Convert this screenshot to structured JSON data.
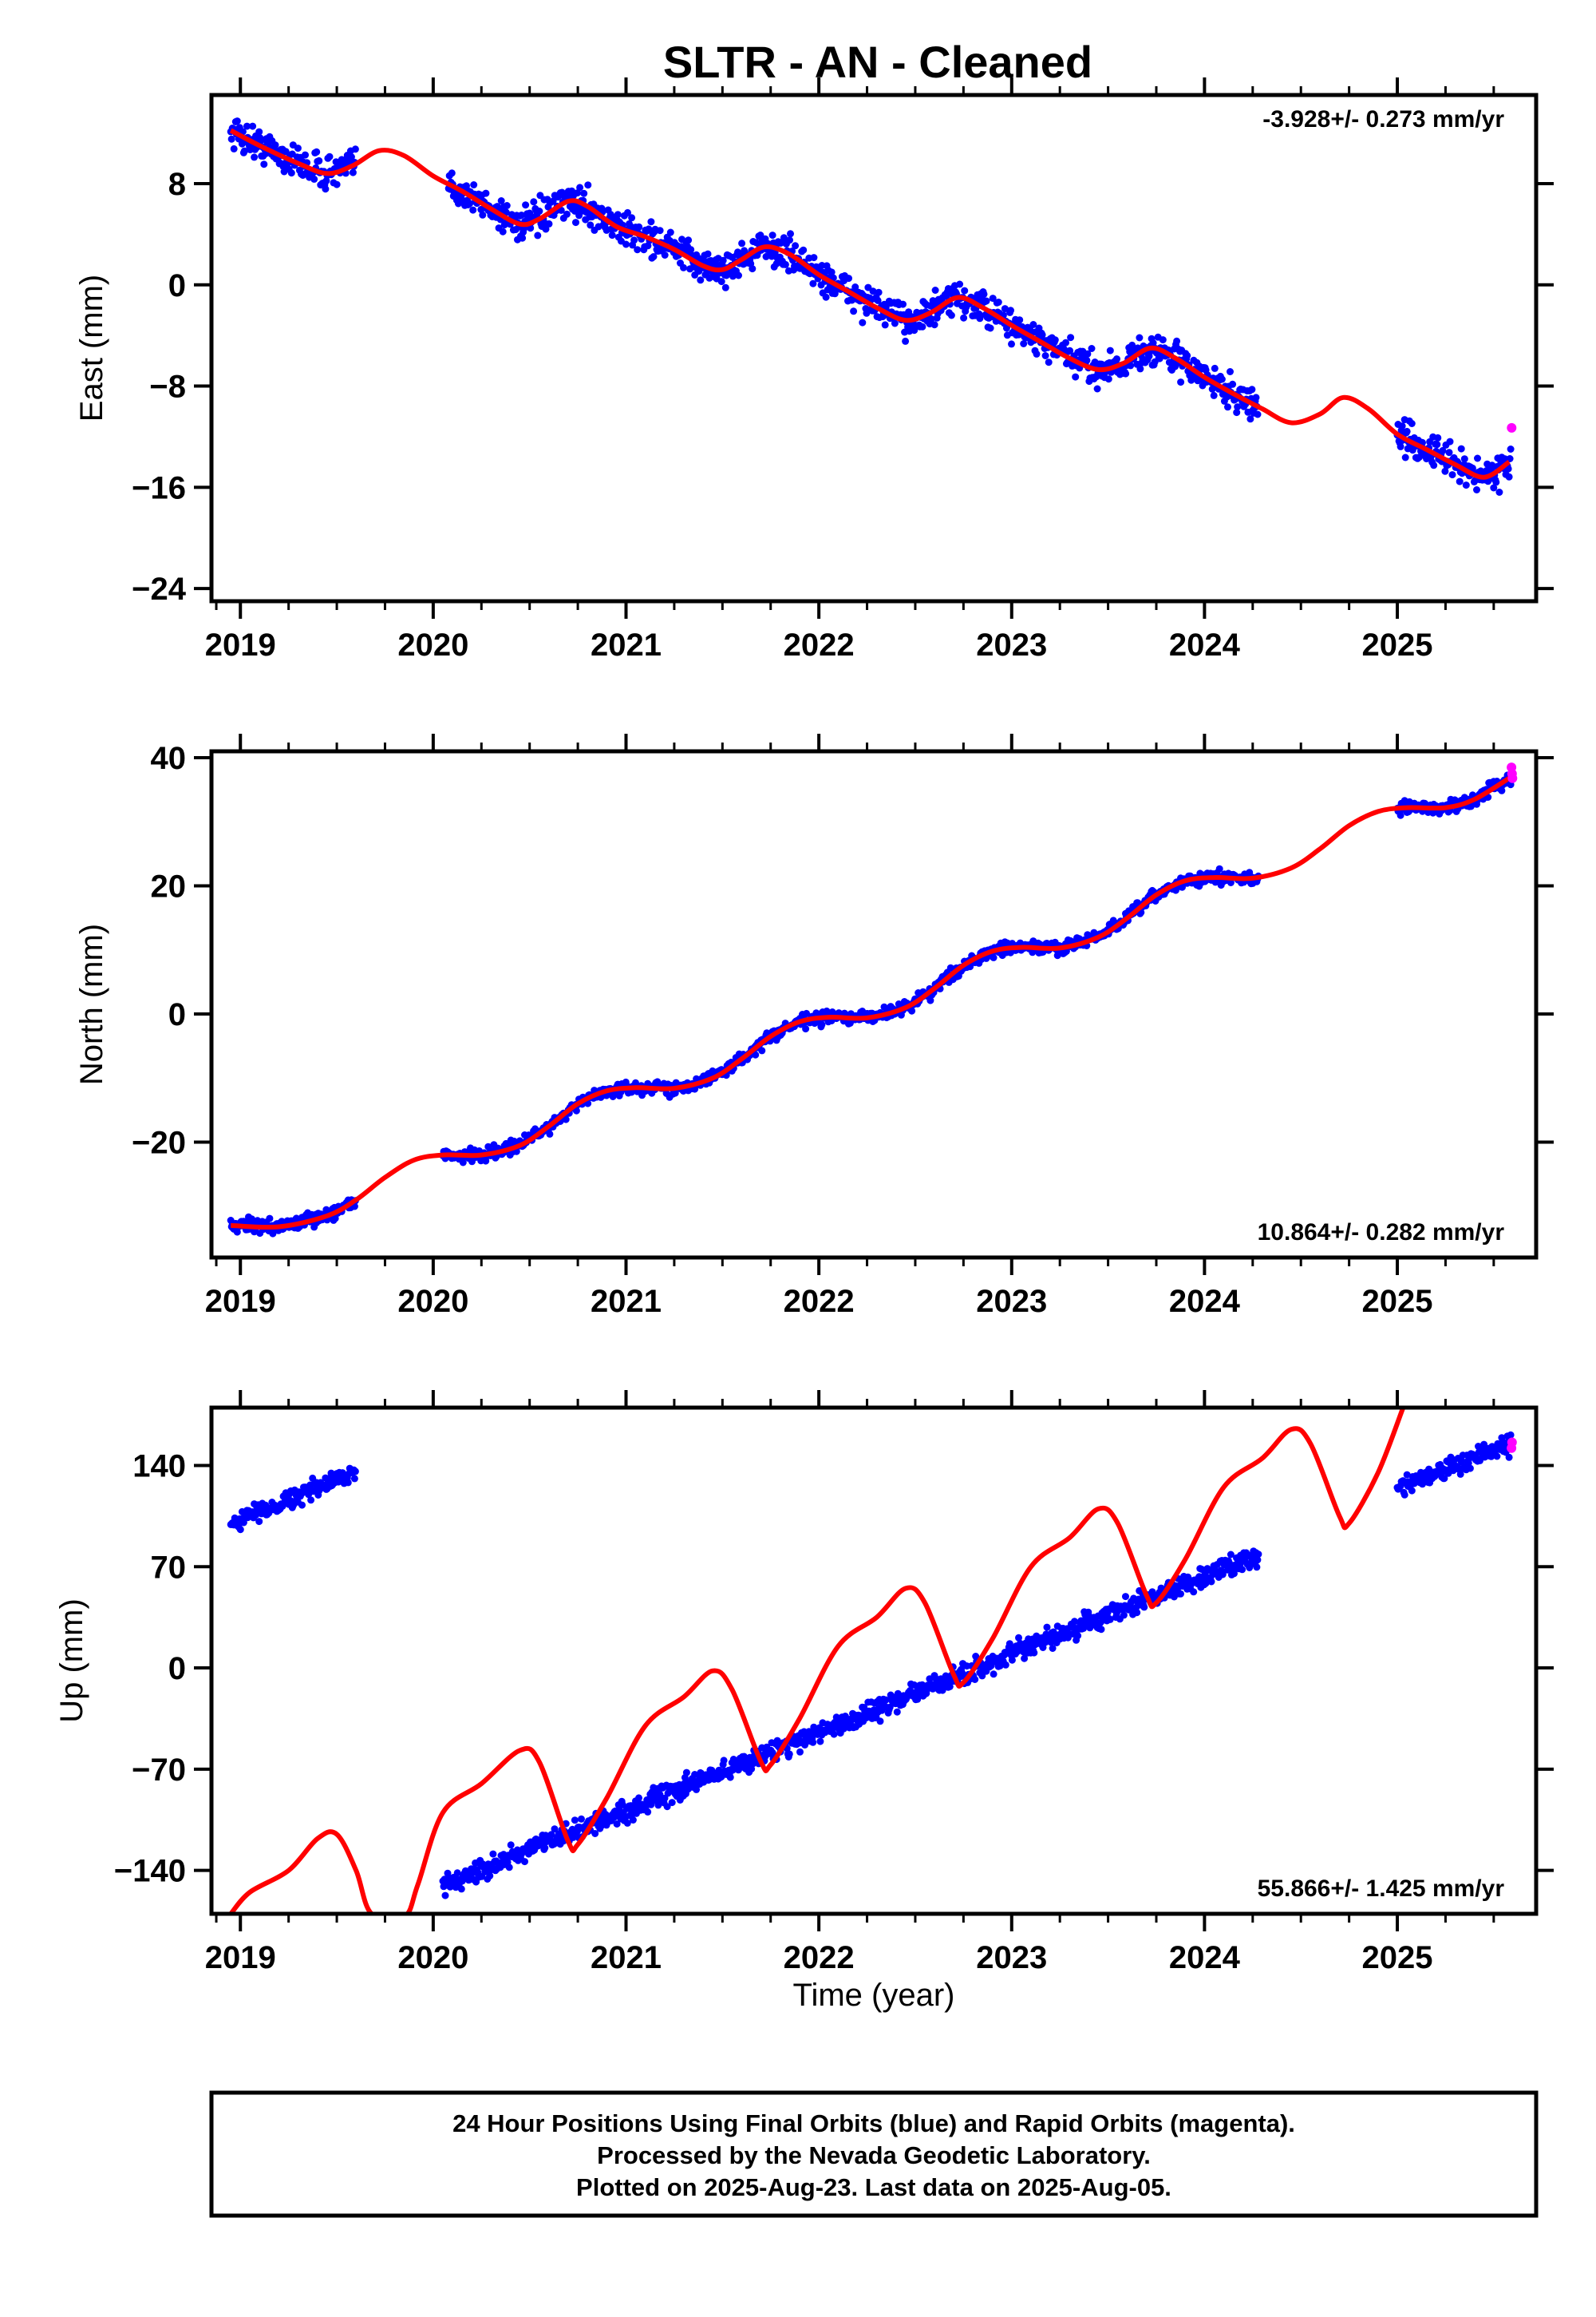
{
  "title": "SLTR  - AN - Cleaned",
  "x_axis_label": "Time (year)",
  "colors": {
    "final_orbits": "#0000ff",
    "rapid_orbits": "#ff00ff",
    "model_fit": "#ff0000",
    "frame": "#000000"
  },
  "footer": {
    "line1": "24 Hour Positions Using Final Orbits (blue) and Rapid Orbits (magenta).",
    "line2": "Processed by the Nevada Geodetic Laboratory.",
    "line3": "Plotted on 2025-Aug-23. Last data on 2025-Aug-05."
  },
  "chart_data": [
    {
      "type": "scatter",
      "id": "east",
      "ylabel": "East (mm)",
      "rate_label": "-3.928+/- 0.273 mm/yr",
      "rate_position": "top-right",
      "xlim": [
        2018.85,
        2025.72
      ],
      "ylim": [
        -25,
        15
      ],
      "xticks": [
        2019,
        2020,
        2021,
        2022,
        2023,
        2024,
        2025
      ],
      "yticks": [
        8,
        0,
        -8,
        -16,
        -24
      ],
      "ytick_labels": [
        "8",
        "0",
        "−8",
        "−16",
        "−24"
      ],
      "data_segments": [
        [
          2018.95,
          2019.6
        ],
        [
          2020.08,
          2024.28
        ],
        [
          2025.0,
          2025.59
        ]
      ],
      "fit": {
        "points": [
          [
            2018.95,
            12.2
          ],
          [
            2019.1,
            11.0
          ],
          [
            2019.3,
            9.6
          ],
          [
            2019.45,
            8.8
          ],
          [
            2019.58,
            9.4
          ],
          [
            2019.72,
            10.6
          ],
          [
            2019.85,
            10.2
          ],
          [
            2020.0,
            8.6
          ],
          [
            2020.15,
            7.4
          ],
          [
            2020.3,
            6.0
          ],
          [
            2020.45,
            4.8
          ],
          [
            2020.55,
            5.2
          ],
          [
            2020.7,
            6.6
          ],
          [
            2020.8,
            6.2
          ],
          [
            2020.95,
            4.6
          ],
          [
            2021.1,
            3.8
          ],
          [
            2021.25,
            2.8
          ],
          [
            2021.4,
            1.5
          ],
          [
            2021.5,
            1.2
          ],
          [
            2021.6,
            2.0
          ],
          [
            2021.72,
            3.0
          ],
          [
            2021.85,
            2.4
          ],
          [
            2022.0,
            0.8
          ],
          [
            2022.15,
            -0.5
          ],
          [
            2022.3,
            -1.8
          ],
          [
            2022.45,
            -2.8
          ],
          [
            2022.58,
            -2.2
          ],
          [
            2022.72,
            -1.0
          ],
          [
            2022.85,
            -1.8
          ],
          [
            2023.0,
            -3.2
          ],
          [
            2023.15,
            -4.5
          ],
          [
            2023.3,
            -5.8
          ],
          [
            2023.45,
            -6.7
          ],
          [
            2023.58,
            -6.2
          ],
          [
            2023.72,
            -5.0
          ],
          [
            2023.85,
            -5.8
          ],
          [
            2024.0,
            -7.3
          ],
          [
            2024.15,
            -8.6
          ],
          [
            2024.3,
            -9.8
          ],
          [
            2024.45,
            -10.9
          ],
          [
            2024.6,
            -10.2
          ],
          [
            2024.72,
            -8.9
          ],
          [
            2024.85,
            -9.8
          ],
          [
            2025.0,
            -11.8
          ],
          [
            2025.15,
            -13.0
          ],
          [
            2025.3,
            -14.2
          ],
          [
            2025.45,
            -15.2
          ],
          [
            2025.58,
            -14.0
          ]
        ]
      },
      "rapid_points": [
        [
          2025.593,
          -11.3
        ]
      ]
    },
    {
      "type": "scatter",
      "id": "north",
      "ylabel": "North (mm)",
      "rate_label": "10.864+/- 0.282 mm/yr",
      "rate_position": "bottom-right",
      "xlim": [
        2018.85,
        2025.72
      ],
      "ylim": [
        -38,
        41
      ],
      "xticks": [
        2019,
        2020,
        2021,
        2022,
        2023,
        2024,
        2025
      ],
      "yticks": [
        40,
        20,
        0,
        -20
      ],
      "ytick_labels": [
        "40",
        "20",
        "0",
        "−20"
      ],
      "data_segments": [
        [
          2018.95,
          2019.6
        ],
        [
          2020.05,
          2024.28
        ],
        [
          2025.0,
          2025.59
        ]
      ],
      "fit": {
        "points": [
          [
            2018.95,
            -33.0
          ],
          [
            2019.2,
            -33.2
          ],
          [
            2019.45,
            -31.5
          ],
          [
            2019.6,
            -29.0
          ],
          [
            2019.75,
            -25.5
          ],
          [
            2019.9,
            -22.8
          ],
          [
            2020.05,
            -22.0
          ],
          [
            2020.25,
            -22.0
          ],
          [
            2020.45,
            -20.5
          ],
          [
            2020.6,
            -17.5
          ],
          [
            2020.75,
            -14.0
          ],
          [
            2020.9,
            -12.0
          ],
          [
            2021.05,
            -11.5
          ],
          [
            2021.25,
            -11.6
          ],
          [
            2021.45,
            -10.0
          ],
          [
            2021.6,
            -7.0
          ],
          [
            2021.75,
            -3.5
          ],
          [
            2021.9,
            -1.2
          ],
          [
            2022.05,
            -0.5
          ],
          [
            2022.25,
            -0.6
          ],
          [
            2022.45,
            1.0
          ],
          [
            2022.6,
            4.0
          ],
          [
            2022.75,
            7.6
          ],
          [
            2022.9,
            9.8
          ],
          [
            2023.05,
            10.4
          ],
          [
            2023.25,
            10.3
          ],
          [
            2023.45,
            12.0
          ],
          [
            2023.6,
            15.0
          ],
          [
            2023.75,
            18.6
          ],
          [
            2023.9,
            20.8
          ],
          [
            2024.05,
            21.3
          ],
          [
            2024.25,
            21.2
          ],
          [
            2024.45,
            22.8
          ],
          [
            2024.6,
            25.8
          ],
          [
            2024.75,
            29.4
          ],
          [
            2024.9,
            31.6
          ],
          [
            2025.05,
            32.2
          ],
          [
            2025.25,
            32.2
          ],
          [
            2025.4,
            33.5
          ],
          [
            2025.58,
            36.8
          ]
        ]
      },
      "rapid_points": [
        [
          2025.592,
          38.5
        ],
        [
          2025.595,
          37.5
        ],
        [
          2025.597,
          36.8
        ]
      ]
    },
    {
      "type": "scatter",
      "id": "up",
      "ylabel": "Up (mm)",
      "rate_label": "55.866+/- 1.425 mm/yr",
      "rate_position": "bottom-right",
      "xlim": [
        2018.85,
        2025.72
      ],
      "ylim": [
        -170,
        180
      ],
      "xticks": [
        2019,
        2020,
        2021,
        2022,
        2023,
        2024,
        2025
      ],
      "yticks": [
        140,
        70,
        0,
        -70,
        -140
      ],
      "ytick_labels": [
        "140",
        "70",
        "0",
        "−70",
        "−140"
      ],
      "data_segments": [
        [
          2018.95,
          2019.6
        ],
        [
          2020.05,
          2024.28
        ],
        [
          2025.0,
          2025.59
        ]
      ],
      "fit": {
        "points": [
          [
            2018.95,
            -170.0
          ],
          [
            2019.05,
            -155.0
          ],
          [
            2019.25,
            -140.0
          ],
          [
            2019.4,
            -118.0
          ],
          [
            2019.5,
            -115.0
          ],
          [
            2019.6,
            -140.0
          ],
          [
            2019.68,
            -170.0
          ],
          [
            2019.85,
            -172.0
          ],
          [
            2019.92,
            -150.0
          ],
          [
            2020.05,
            -100.0
          ],
          [
            2020.25,
            -80.0
          ],
          [
            2020.45,
            -57.0
          ],
          [
            2020.55,
            -65.0
          ],
          [
            2020.7,
            -120.0
          ],
          [
            2020.75,
            -122.0
          ],
          [
            2020.9,
            -90.0
          ],
          [
            2021.1,
            -40.0
          ],
          [
            2021.3,
            -20.0
          ],
          [
            2021.45,
            -2.0
          ],
          [
            2021.55,
            -15.0
          ],
          [
            2021.7,
            -65.0
          ],
          [
            2021.75,
            -67.0
          ],
          [
            2021.9,
            -35.0
          ],
          [
            2022.1,
            15.0
          ],
          [
            2022.3,
            35.0
          ],
          [
            2022.45,
            55.0
          ],
          [
            2022.55,
            45.0
          ],
          [
            2022.7,
            -5.0
          ],
          [
            2022.75,
            -10.0
          ],
          [
            2022.9,
            20.0
          ],
          [
            2023.1,
            70.0
          ],
          [
            2023.3,
            90.0
          ],
          [
            2023.45,
            110.0
          ],
          [
            2023.55,
            100.0
          ],
          [
            2023.7,
            50.0
          ],
          [
            2023.75,
            45.0
          ],
          [
            2023.9,
            75.0
          ],
          [
            2024.1,
            125.0
          ],
          [
            2024.3,
            145.0
          ],
          [
            2024.45,
            165.0
          ],
          [
            2024.55,
            155.0
          ],
          [
            2024.7,
            105.0
          ],
          [
            2024.75,
            100.0
          ],
          [
            2024.9,
            135.0
          ],
          [
            2025.03,
            180.0
          ]
        ]
      },
      "rapid_points": [
        [
          2025.592,
          152.0
        ],
        [
          2025.595,
          156.0
        ]
      ]
    }
  ]
}
